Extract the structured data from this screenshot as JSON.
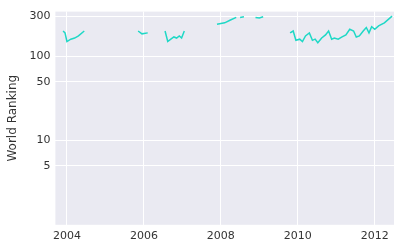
{
  "chart_data": {
    "type": "line",
    "y_label": "World Ranking",
    "x": [
      2003.9,
      2003.95,
      2004.0,
      2004.1,
      2004.2,
      2004.3,
      2004.45,
      null,
      2005.85,
      2005.95,
      2006.1,
      null,
      2006.55,
      2006.62,
      2006.7,
      2006.78,
      2006.85,
      2006.92,
      2006.98,
      2007.05,
      null,
      2007.9,
      2008.0,
      2008.1,
      2008.25,
      2008.4,
      null,
      2008.5,
      2008.6,
      null,
      2008.9,
      2009.0,
      2009.1,
      null,
      2009.8,
      2009.88,
      2009.95,
      2010.05,
      2010.12,
      2010.2,
      2010.3,
      2010.38,
      2010.45,
      2010.52,
      2010.62,
      2010.72,
      2010.8,
      2010.88,
      2010.95,
      2011.05,
      2011.15,
      2011.25,
      2011.35,
      2011.45,
      2011.52,
      2011.6,
      2011.7,
      2011.78,
      2011.85,
      2011.92,
      2012.0,
      2012.1,
      2012.25,
      2012.45
    ],
    "series": [
      {
        "name": "World Ranking",
        "color": "#1fd8c6",
        "values": [
          200,
          190,
          150,
          160,
          165,
          175,
          200,
          null,
          200,
          185,
          190,
          null,
          200,
          150,
          160,
          170,
          165,
          175,
          165,
          200,
          null,
          240,
          245,
          250,
          270,
          290,
          null,
          290,
          295,
          null,
          290,
          285,
          295,
          null,
          190,
          200,
          155,
          160,
          150,
          175,
          190,
          155,
          160,
          145,
          165,
          180,
          200,
          160,
          165,
          160,
          170,
          180,
          210,
          200,
          170,
          175,
          200,
          220,
          190,
          225,
          210,
          230,
          250,
          300
        ]
      }
    ],
    "xlim": [
      2003.7,
      2012.5
    ],
    "xticks": [
      2004,
      2006,
      2008,
      2010,
      2012
    ],
    "ylim": [
      1,
      340
    ],
    "yticks": [
      5,
      10,
      50,
      100,
      300
    ],
    "log": "y",
    "grid": true
  }
}
